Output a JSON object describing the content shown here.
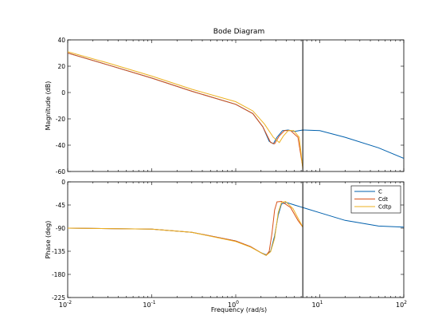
{
  "figure": {
    "title": "Bode Diagram",
    "xlabel": "Frequency  (rad/s)"
  },
  "chart_data": [
    {
      "type": "line",
      "panel": "magnitude",
      "xscale": "log",
      "xlim": [
        0.01,
        100
      ],
      "ylabel": "Magnitude (dB)",
      "ylim": [
        -60,
        40
      ],
      "yticks": [
        40,
        20,
        0,
        -20,
        -40,
        -60
      ],
      "vline_x": 6.28,
      "series": [
        {
          "name": "C",
          "color": "#0060ad",
          "points": [
            [
              0.01,
              30
            ],
            [
              0.03,
              21
            ],
            [
              0.1,
              11
            ],
            [
              0.3,
              1
            ],
            [
              1,
              -9
            ],
            [
              1.6,
              -16
            ],
            [
              2.1,
              -26
            ],
            [
              2.5,
              -37
            ],
            [
              2.8,
              -39
            ],
            [
              3.1,
              -34
            ],
            [
              3.6,
              -29
            ],
            [
              4.2,
              -28.5
            ],
            [
              5,
              -29.5
            ],
            [
              6.28,
              -28.5
            ],
            [
              10,
              -29
            ],
            [
              20,
              -34
            ],
            [
              50,
              -42
            ],
            [
              100,
              -50
            ]
          ]
        },
        {
          "name": "Cdt",
          "color": "#d95319",
          "points": [
            [
              0.01,
              30
            ],
            [
              0.03,
              21
            ],
            [
              0.1,
              11
            ],
            [
              0.3,
              1
            ],
            [
              1,
              -9
            ],
            [
              1.6,
              -16
            ],
            [
              2.1,
              -26
            ],
            [
              2.6,
              -38
            ],
            [
              2.9,
              -39
            ],
            [
              3.3,
              -33
            ],
            [
              3.8,
              -29
            ],
            [
              4.5,
              -29
            ],
            [
              5.5,
              -34
            ],
            [
              6.28,
              -57
            ]
          ]
        },
        {
          "name": "Cdtp",
          "color": "#edb120",
          "points": [
            [
              0.01,
              31
            ],
            [
              0.03,
              22.5
            ],
            [
              0.1,
              12.5
            ],
            [
              0.3,
              2.5
            ],
            [
              1,
              -7
            ],
            [
              1.6,
              -14
            ],
            [
              2.2,
              -24
            ],
            [
              2.8,
              -34
            ],
            [
              3.3,
              -38
            ],
            [
              3.7,
              -33
            ],
            [
              4.2,
              -29
            ],
            [
              4.9,
              -29
            ],
            [
              5.7,
              -34
            ],
            [
              6.28,
              -58
            ]
          ]
        }
      ]
    },
    {
      "type": "line",
      "panel": "phase",
      "xscale": "log",
      "xlim": [
        0.01,
        100
      ],
      "ylabel": "Phase (deg)",
      "ylim": [
        -225,
        0
      ],
      "yticks": [
        0,
        -45,
        -90,
        -135,
        -180,
        -225
      ],
      "xtick_labels": [
        "10-2",
        "10-1",
        "100",
        "101",
        "102"
      ],
      "vline_x": 6.28,
      "legend": "top-right",
      "series": [
        {
          "name": "C",
          "color": "#0060ad",
          "points": [
            [
              0.01,
              -90
            ],
            [
              0.1,
              -92
            ],
            [
              0.3,
              -98
            ],
            [
              1,
              -115
            ],
            [
              1.5,
              -126
            ],
            [
              2,
              -138
            ],
            [
              2.3,
              -142
            ],
            [
              2.6,
              -135
            ],
            [
              2.9,
              -105
            ],
            [
              3.2,
              -65
            ],
            [
              3.5,
              -43
            ],
            [
              4,
              -40
            ],
            [
              5,
              -45
            ],
            [
              6.28,
              -50
            ],
            [
              10,
              -60
            ],
            [
              20,
              -75
            ],
            [
              50,
              -86
            ],
            [
              100,
              -88
            ]
          ]
        },
        {
          "name": "Cdt",
          "color": "#d95319",
          "points": [
            [
              0.01,
              -90
            ],
            [
              0.1,
              -92
            ],
            [
              0.3,
              -98
            ],
            [
              1,
              -115
            ],
            [
              1.5,
              -126
            ],
            [
              2,
              -138
            ],
            [
              2.3,
              -143
            ],
            [
              2.5,
              -135
            ],
            [
              2.7,
              -100
            ],
            [
              2.9,
              -55
            ],
            [
              3.1,
              -39
            ],
            [
              3.5,
              -38
            ],
            [
              4.5,
              -50
            ],
            [
              5.5,
              -75
            ],
            [
              6.28,
              -88
            ]
          ]
        },
        {
          "name": "Cdtp",
          "color": "#edb120",
          "points": [
            [
              0.01,
              -90
            ],
            [
              0.1,
              -92
            ],
            [
              0.3,
              -98
            ],
            [
              1,
              -116
            ],
            [
              1.5,
              -127
            ],
            [
              2,
              -138
            ],
            [
              2.3,
              -143
            ],
            [
              2.6,
              -136
            ],
            [
              2.9,
              -110
            ],
            [
              3.2,
              -60
            ],
            [
              3.5,
              -40
            ],
            [
              3.9,
              -38
            ],
            [
              4.8,
              -52
            ],
            [
              5.7,
              -75
            ],
            [
              6.28,
              -88
            ]
          ]
        }
      ]
    }
  ]
}
